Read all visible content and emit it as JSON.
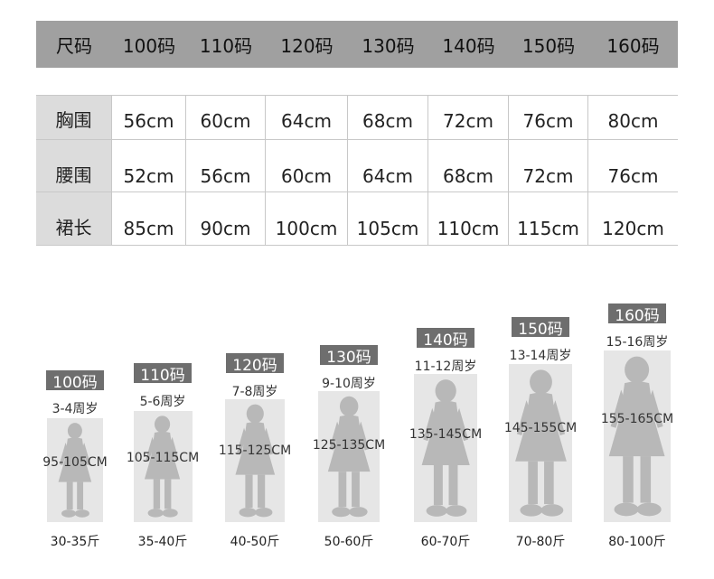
{
  "table": {
    "header": [
      "尺码",
      "100码",
      "110码",
      "120码",
      "130码",
      "140码",
      "150码",
      "160码"
    ],
    "rows": [
      {
        "label": "胸围",
        "values": [
          "56cm",
          "60cm",
          "64cm",
          "68cm",
          "72cm",
          "76cm",
          "80cm"
        ]
      },
      {
        "label": "腰围",
        "values": [
          "52cm",
          "56cm",
          "60cm",
          "64cm",
          "68cm",
          "72cm",
          "76cm"
        ]
      },
      {
        "label": "裙长",
        "values": [
          "85cm",
          "90cm",
          "100cm",
          "105cm",
          "110cm",
          "115cm",
          "120cm"
        ]
      }
    ]
  },
  "figures": [
    {
      "size": "100码",
      "age": "3-4周岁",
      "height": "95-105CM",
      "weight": "30-35斤"
    },
    {
      "size": "110码",
      "age": "5-6周岁",
      "height": "105-115CM",
      "weight": "35-40斤"
    },
    {
      "size": "120码",
      "age": "7-8周岁",
      "height": "115-125CM",
      "weight": "40-50斤"
    },
    {
      "size": "130码",
      "age": "9-10周岁",
      "height": "125-135CM",
      "weight": "50-60斤"
    },
    {
      "size": "140码",
      "age": "11-12周岁",
      "height": "135-145CM",
      "weight": "60-70斤"
    },
    {
      "size": "150码",
      "age": "13-14周岁",
      "height": "145-155CM",
      "weight": "70-80斤"
    },
    {
      "size": "160码",
      "age": "15-16周岁",
      "height": "155-165CM",
      "weight": "80-100斤"
    }
  ],
  "colors": {
    "header_bg": "#a0a0a0",
    "label_bg": "#dcdcdc",
    "tag_bg": "#6e6e6e",
    "figure_box": "#e6e6e6",
    "silhouette": "#b8b8b8"
  }
}
